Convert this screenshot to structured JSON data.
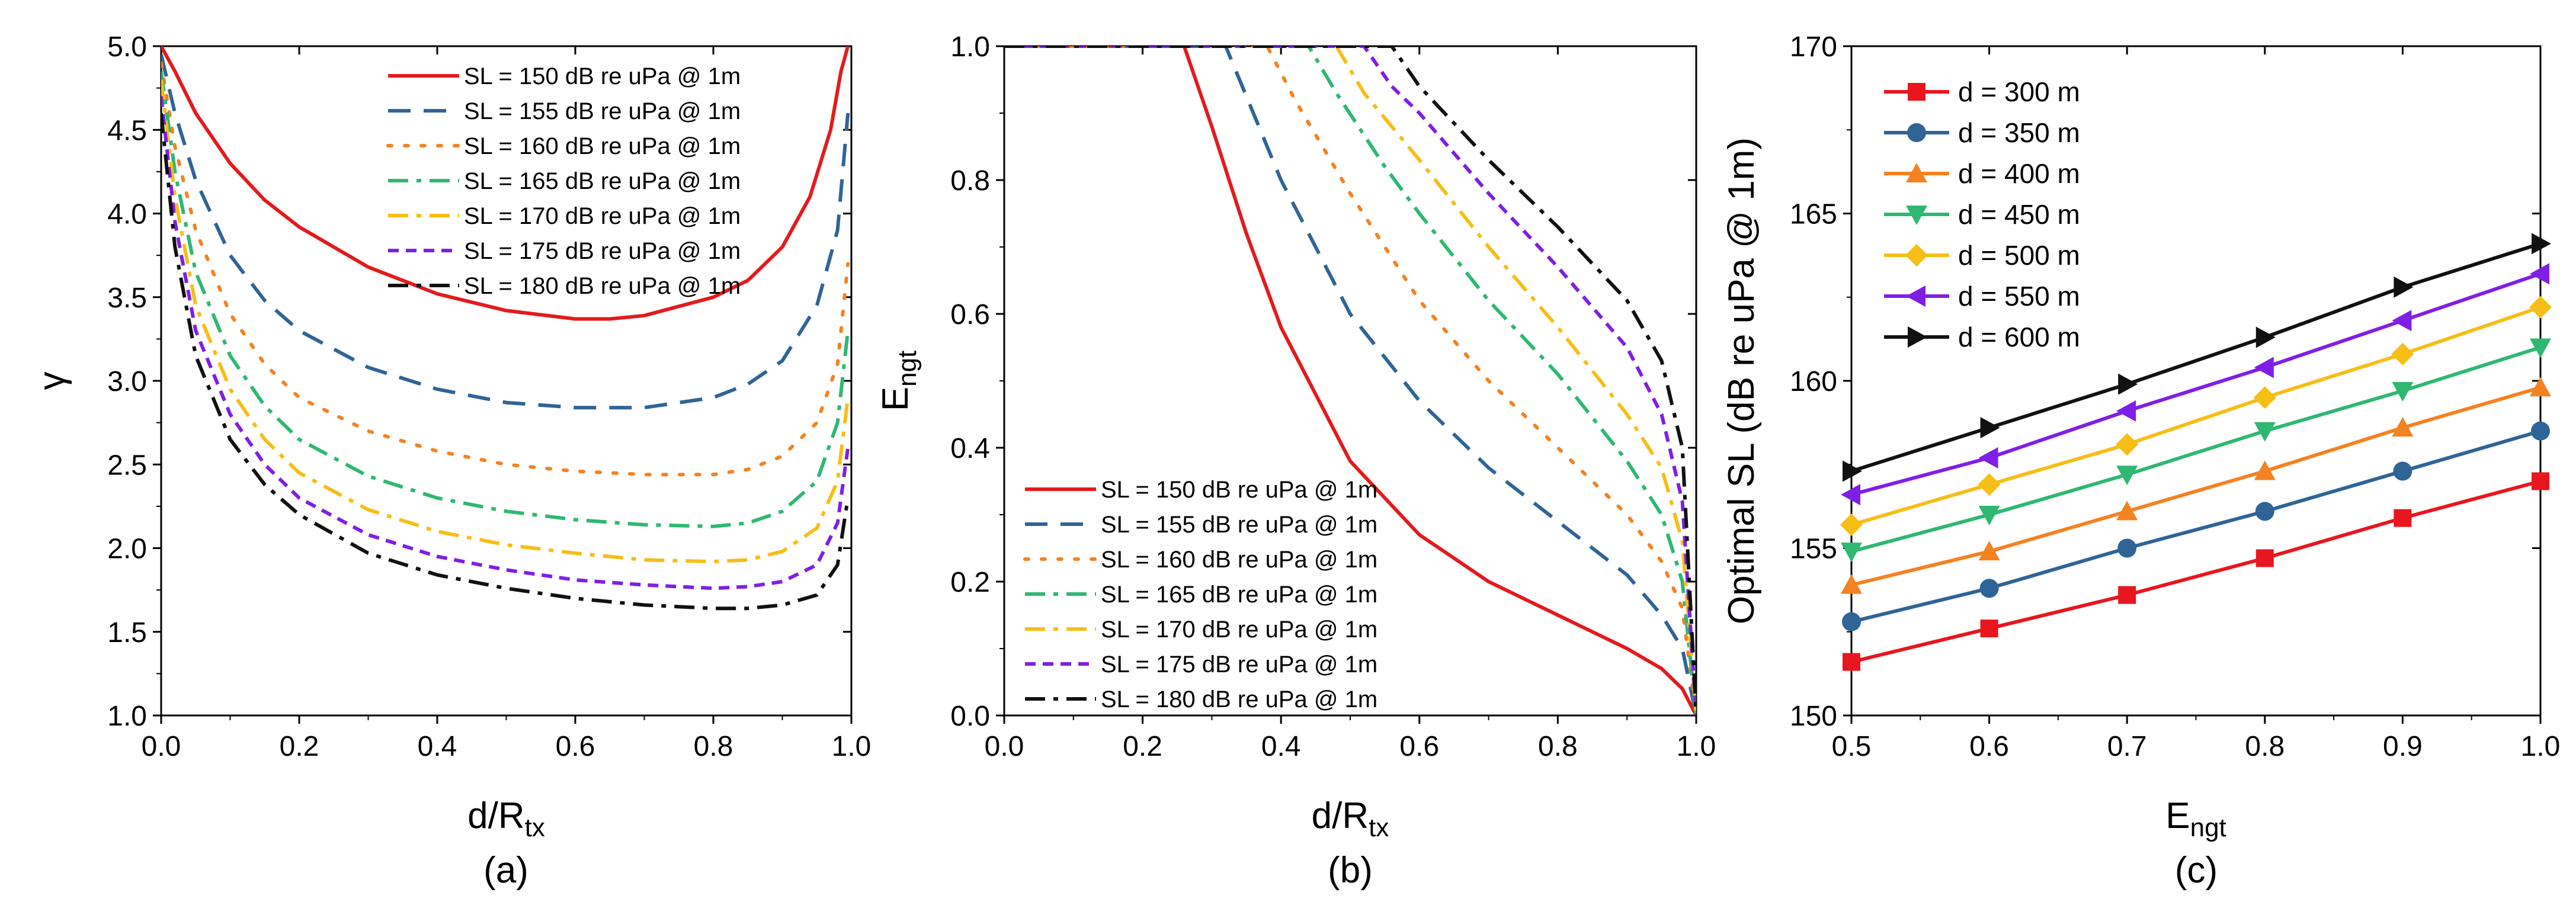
{
  "chart_data": [
    {
      "panel": "(a)",
      "type": "line",
      "xlabel": "d/R",
      "xlabel_sub": "tx",
      "ylabel": "γ",
      "xlim": [
        0.0,
        1.0
      ],
      "ylim": [
        1.0,
        5.0
      ],
      "xticks": [
        "0.0",
        "0.2",
        "0.4",
        "0.6",
        "0.8",
        "1.0"
      ],
      "yticks": [
        "1.0",
        "1.5",
        "2.0",
        "2.5",
        "3.0",
        "3.5",
        "4.0",
        "4.5",
        "5.0"
      ],
      "legend_position": "top-right",
      "series": [
        {
          "name": "SL = 150 dB re uPa @ 1m",
          "color": "#e41a1c",
          "dash": "solid",
          "x": [
            0.0,
            0.02,
            0.05,
            0.1,
            0.15,
            0.2,
            0.3,
            0.4,
            0.5,
            0.6,
            0.65,
            0.7,
            0.8,
            0.85,
            0.9,
            0.94,
            0.97,
            0.985,
            0.995
          ],
          "y": [
            5.0,
            4.85,
            4.6,
            4.3,
            4.08,
            3.92,
            3.68,
            3.52,
            3.42,
            3.37,
            3.37,
            3.39,
            3.5,
            3.6,
            3.8,
            4.1,
            4.5,
            4.85,
            5.0
          ]
        },
        {
          "name": "SL = 155 dB re uPa @ 1m",
          "color": "#2f6497",
          "dash": "long-dash",
          "x": [
            0.0,
            0.02,
            0.05,
            0.1,
            0.15,
            0.2,
            0.3,
            0.4,
            0.5,
            0.6,
            0.7,
            0.8,
            0.85,
            0.9,
            0.95,
            0.98,
            0.995
          ],
          "y": [
            4.95,
            4.6,
            4.2,
            3.75,
            3.48,
            3.3,
            3.08,
            2.95,
            2.87,
            2.84,
            2.84,
            2.9,
            2.98,
            3.12,
            3.45,
            3.9,
            4.6
          ]
        },
        {
          "name": "SL = 160 dB re uPa @ 1m",
          "color": "#f58220",
          "dash": "dot",
          "x": [
            0.0,
            0.02,
            0.05,
            0.1,
            0.15,
            0.2,
            0.3,
            0.4,
            0.5,
            0.6,
            0.7,
            0.8,
            0.85,
            0.9,
            0.95,
            0.98,
            0.995
          ],
          "y": [
            4.9,
            4.4,
            3.9,
            3.4,
            3.1,
            2.9,
            2.7,
            2.58,
            2.5,
            2.46,
            2.44,
            2.44,
            2.47,
            2.55,
            2.75,
            3.1,
            3.7
          ]
        },
        {
          "name": "SL = 165 dB re uPa @ 1m",
          "color": "#2fb872",
          "dash": "dash-dot",
          "x": [
            0.0,
            0.02,
            0.05,
            0.1,
            0.15,
            0.2,
            0.3,
            0.4,
            0.5,
            0.6,
            0.7,
            0.8,
            0.85,
            0.9,
            0.95,
            0.98,
            0.995
          ],
          "y": [
            4.85,
            4.25,
            3.65,
            3.15,
            2.85,
            2.65,
            2.43,
            2.3,
            2.22,
            2.17,
            2.14,
            2.13,
            2.15,
            2.22,
            2.4,
            2.75,
            3.3
          ]
        },
        {
          "name": "SL = 170 dB re uPa @ 1m",
          "color": "#f7be16",
          "dash": "dash-dot",
          "x": [
            0.0,
            0.02,
            0.05,
            0.1,
            0.15,
            0.2,
            0.3,
            0.4,
            0.5,
            0.6,
            0.7,
            0.8,
            0.85,
            0.9,
            0.95,
            0.98,
            0.995
          ],
          "y": [
            4.8,
            4.1,
            3.45,
            2.95,
            2.65,
            2.45,
            2.23,
            2.1,
            2.02,
            1.97,
            1.93,
            1.92,
            1.93,
            1.98,
            2.12,
            2.4,
            2.9
          ]
        },
        {
          "name": "SL = 175 dB re uPa @ 1m",
          "color": "#7f1fe6",
          "dash": "short-dash",
          "x": [
            0.0,
            0.02,
            0.05,
            0.1,
            0.15,
            0.2,
            0.3,
            0.4,
            0.5,
            0.6,
            0.7,
            0.8,
            0.85,
            0.9,
            0.95,
            0.98,
            0.995
          ],
          "y": [
            4.7,
            3.95,
            3.3,
            2.8,
            2.5,
            2.3,
            2.08,
            1.95,
            1.87,
            1.81,
            1.78,
            1.76,
            1.77,
            1.8,
            1.9,
            2.15,
            2.6
          ]
        },
        {
          "name": "SL = 180 dB re uPa @ 1m",
          "color": "#111111",
          "dash": "dash-dot",
          "x": [
            0.0,
            0.02,
            0.05,
            0.1,
            0.15,
            0.2,
            0.3,
            0.4,
            0.5,
            0.6,
            0.7,
            0.8,
            0.85,
            0.9,
            0.95,
            0.98,
            0.995
          ],
          "y": [
            4.6,
            3.8,
            3.15,
            2.65,
            2.38,
            2.2,
            1.97,
            1.84,
            1.76,
            1.7,
            1.66,
            1.64,
            1.64,
            1.66,
            1.72,
            1.9,
            2.3
          ]
        }
      ]
    },
    {
      "panel": "(b)",
      "type": "line",
      "xlabel": "d/R",
      "xlabel_sub": "tx",
      "ylabel": "E",
      "ylabel_sub": "ngt",
      "xlim": [
        0.0,
        1.0
      ],
      "ylim": [
        0.0,
        1.0
      ],
      "xticks": [
        "0.0",
        "0.2",
        "0.4",
        "0.6",
        "0.8",
        "1.0"
      ],
      "yticks": [
        "0.0",
        "0.2",
        "0.4",
        "0.6",
        "0.8",
        "1.0"
      ],
      "legend_position": "bottom-left",
      "series": [
        {
          "name": "SL = 150 dB re uPa @ 1m",
          "color": "#e41a1c",
          "dash": "solid",
          "x": [
            0.0,
            0.26,
            0.3,
            0.35,
            0.4,
            0.5,
            0.6,
            0.7,
            0.8,
            0.9,
            0.95,
            0.98,
            1.0
          ],
          "y": [
            1.0,
            1.0,
            0.88,
            0.72,
            0.58,
            0.38,
            0.27,
            0.2,
            0.15,
            0.1,
            0.07,
            0.04,
            0.0
          ]
        },
        {
          "name": "SL = 155 dB re uPa @ 1m",
          "color": "#2f6497",
          "dash": "long-dash",
          "x": [
            0.0,
            0.32,
            0.36,
            0.4,
            0.5,
            0.6,
            0.7,
            0.8,
            0.9,
            0.95,
            0.98,
            1.0
          ],
          "y": [
            1.0,
            1.0,
            0.9,
            0.8,
            0.6,
            0.47,
            0.37,
            0.29,
            0.21,
            0.15,
            0.1,
            0.0
          ]
        },
        {
          "name": "SL = 160 dB re uPa @ 1m",
          "color": "#f58220",
          "dash": "dot",
          "x": [
            0.0,
            0.38,
            0.42,
            0.5,
            0.6,
            0.7,
            0.8,
            0.9,
            0.95,
            0.98,
            1.0
          ],
          "y": [
            1.0,
            1.0,
            0.92,
            0.78,
            0.62,
            0.5,
            0.4,
            0.3,
            0.23,
            0.16,
            0.0
          ]
        },
        {
          "name": "SL = 165 dB re uPa @ 1m",
          "color": "#2fb872",
          "dash": "dash-dot",
          "x": [
            0.0,
            0.44,
            0.48,
            0.55,
            0.6,
            0.7,
            0.8,
            0.9,
            0.95,
            0.98,
            1.0
          ],
          "y": [
            1.0,
            1.0,
            0.93,
            0.82,
            0.75,
            0.62,
            0.51,
            0.38,
            0.3,
            0.2,
            0.0
          ]
        },
        {
          "name": "SL = 170 dB re uPa @ 1m",
          "color": "#f7be16",
          "dash": "dash-dot",
          "x": [
            0.0,
            0.48,
            0.52,
            0.6,
            0.7,
            0.8,
            0.9,
            0.95,
            0.98,
            1.0
          ],
          "y": [
            1.0,
            1.0,
            0.93,
            0.83,
            0.7,
            0.58,
            0.45,
            0.37,
            0.26,
            0.0
          ]
        },
        {
          "name": "SL = 175 dB re uPa @ 1m",
          "color": "#7f1fe6",
          "dash": "short-dash",
          "x": [
            0.0,
            0.52,
            0.56,
            0.6,
            0.7,
            0.8,
            0.9,
            0.95,
            0.98,
            1.0
          ],
          "y": [
            1.0,
            1.0,
            0.94,
            0.9,
            0.78,
            0.67,
            0.55,
            0.45,
            0.32,
            0.0
          ]
        },
        {
          "name": "SL = 180 dB re uPa @ 1m",
          "color": "#111111",
          "dash": "dash-dot",
          "x": [
            0.0,
            0.56,
            0.6,
            0.7,
            0.8,
            0.9,
            0.95,
            0.98,
            1.0
          ],
          "y": [
            1.0,
            1.0,
            0.94,
            0.83,
            0.73,
            0.62,
            0.53,
            0.4,
            0.0
          ]
        }
      ]
    },
    {
      "panel": "(c)",
      "type": "line",
      "xlabel": "E",
      "xlabel_sub": "ngt",
      "ylabel": "Optimal SL (dB re uPa @ 1m)",
      "xlim": [
        0.5,
        1.0
      ],
      "ylim": [
        150,
        170
      ],
      "xticks": [
        "0.5",
        "0.6",
        "0.7",
        "0.8",
        "0.9",
        "1.0"
      ],
      "yticks": [
        "150",
        "155",
        "160",
        "165",
        "170"
      ],
      "legend_position": "top-left",
      "x": [
        0.5,
        0.6,
        0.7,
        0.8,
        0.9,
        1.0
      ],
      "series": [
        {
          "name": "d = 300 m",
          "color": "#e8161e",
          "marker": "square",
          "values": [
            151.6,
            152.6,
            153.6,
            154.7,
            155.9,
            157.0
          ]
        },
        {
          "name": "d = 350 m",
          "color": "#2f6497",
          "marker": "circle",
          "values": [
            152.8,
            153.8,
            155.0,
            156.1,
            157.3,
            158.5
          ]
        },
        {
          "name": "d = 400 m",
          "color": "#f58220",
          "marker": "triangle-up",
          "values": [
            153.9,
            154.9,
            156.1,
            157.3,
            158.6,
            159.8
          ]
        },
        {
          "name": "d = 450 m",
          "color": "#2fb872",
          "marker": "triangle-down",
          "values": [
            154.9,
            156.0,
            157.2,
            158.5,
            159.7,
            161.0
          ]
        },
        {
          "name": "d = 500 m",
          "color": "#f7be16",
          "marker": "diamond",
          "values": [
            155.7,
            156.9,
            158.1,
            159.5,
            160.8,
            162.2
          ]
        },
        {
          "name": "d = 550 m",
          "color": "#7f1fe6",
          "marker": "triangle-left",
          "values": [
            156.6,
            157.7,
            159.1,
            160.4,
            161.8,
            163.2
          ]
        },
        {
          "name": "d = 600 m",
          "color": "#111111",
          "marker": "triangle-right",
          "values": [
            157.3,
            158.6,
            159.9,
            161.3,
            162.8,
            164.1
          ]
        }
      ]
    }
  ]
}
